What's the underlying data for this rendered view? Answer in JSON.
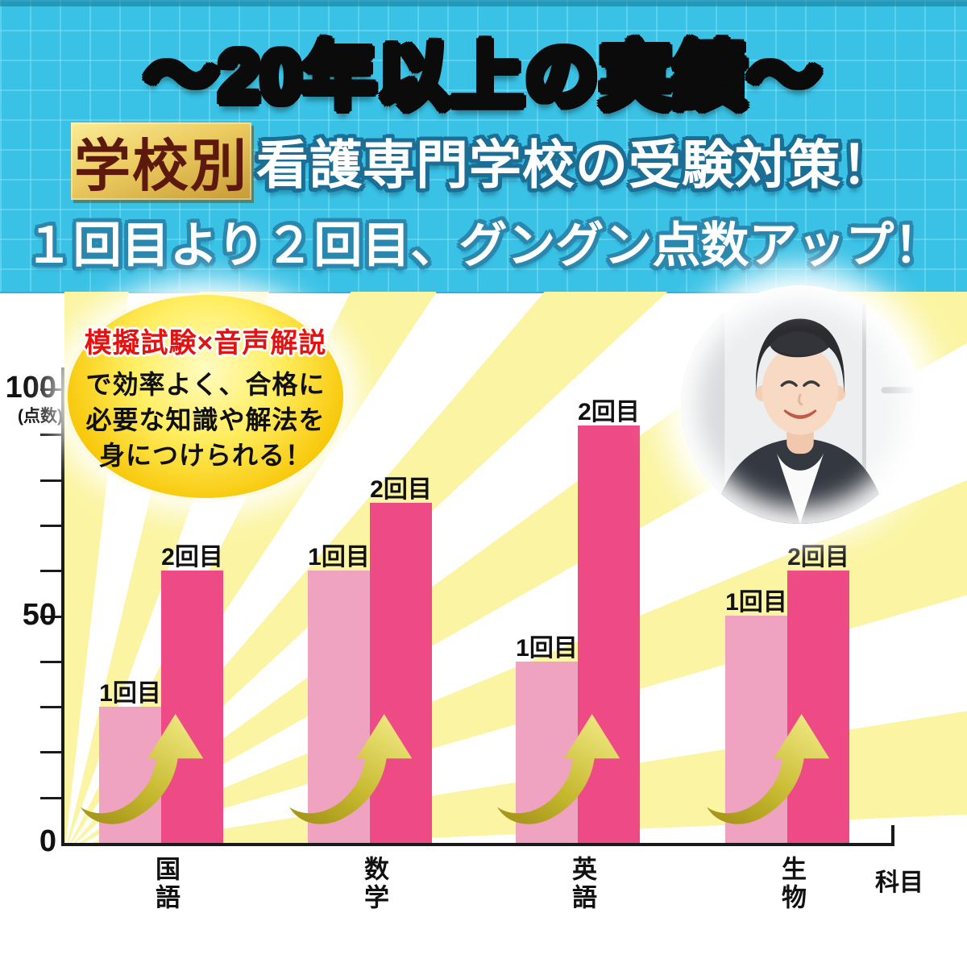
{
  "header": {
    "title": "～20年以上の実績～",
    "badge": "学校別",
    "headline1": "看護専門学校の受験対策！",
    "headline2": "１回目より２回目、グングン点数アップ！"
  },
  "bubble": {
    "line1": "模擬試験×音声解説",
    "line2": "で効率よく、合格に",
    "line3": "必要な知識や解法を",
    "line4": "身につけられる！"
  },
  "photo": {
    "name": "smiling-woman-portrait"
  },
  "chart_data": {
    "type": "bar",
    "categories": [
      "国語",
      "数学",
      "英語",
      "生物"
    ],
    "series": [
      {
        "name": "1回目",
        "color": "#f0a3c0",
        "values": [
          30,
          60,
          40,
          50
        ]
      },
      {
        "name": "2回目",
        "color": "#ee4b86",
        "values": [
          60,
          75,
          92,
          60
        ]
      }
    ],
    "bar_value_labels": "series name shown above each bar",
    "xlabel": "科目",
    "ylabel": "点数",
    "y_unit_label": "(点数)",
    "ylim": [
      0,
      100
    ],
    "ytick_step": 10,
    "yticks_labeled": [
      100,
      50,
      0
    ],
    "grid": false,
    "legend": "none",
    "annotations": "golden up-swoosh arrow from 1回目 bar to 2回目 bar in every category"
  },
  "colors": {
    "header_bg": "#39c2e6",
    "title_gold": "#e3c253",
    "badge_text": "#5d190c",
    "ray_yellow": "#fbf5a3",
    "bar_light": "#f0a3c0",
    "bar_dark": "#ee4b86",
    "arrow_dark": "#a08f16",
    "arrow_mid": "#c6b82e",
    "arrow_light": "#ece47a",
    "axis": "#1a1a1a",
    "bubble_red": "#e51212"
  }
}
